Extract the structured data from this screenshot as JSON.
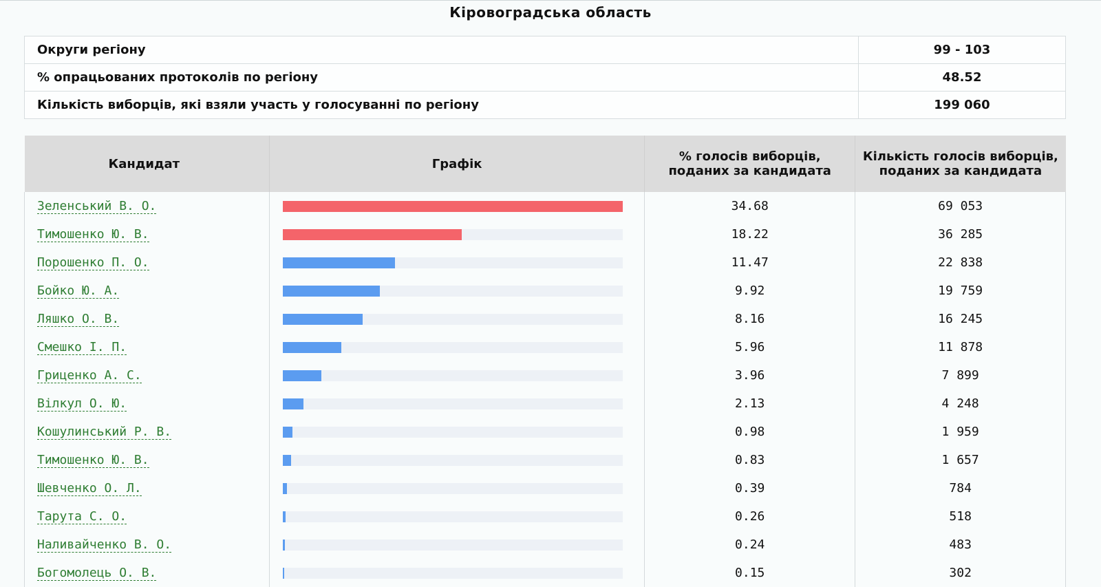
{
  "page": {
    "title": "Кіровоградська область"
  },
  "summary": {
    "rows": [
      {
        "label": "Округи регіону",
        "value": "99 - 103"
      },
      {
        "label": "% опрацьованих протоколів по регіону",
        "value": "48.52"
      },
      {
        "label": "Кількість виборців, які взяли участь у голосуванні по регіону",
        "value": "199 060"
      }
    ]
  },
  "table": {
    "headers": {
      "candidate": "Кандидат",
      "chart": "Графік",
      "percent": "% голосів виборців, поданих за кандидата",
      "votes": "Кількість голосів виборців, поданих за кандидата"
    }
  },
  "colors": {
    "top_bar": "#f4646a",
    "other_bar": "#5b9cf0",
    "track": "#edf1f6",
    "link": "#2e7d32"
  },
  "chart_data": {
    "type": "bar",
    "categories": [
      "Зеленський В. О.",
      "Тимошенко Ю. В.",
      "Порошенко П. О.",
      "Бойко Ю. А.",
      "Ляшко О. В.",
      "Смешко І. П.",
      "Гриценко А. С.",
      "Вілкул О. Ю.",
      "Кошулинський Р. В.",
      "Тимошенко Ю. В.",
      "Шевченко О. Л.",
      "Тарута С. О.",
      "Наливайченко В. О.",
      "Богомолець О. В."
    ],
    "values": [
      34.68,
      18.22,
      11.47,
      9.92,
      8.16,
      5.96,
      3.96,
      2.13,
      0.98,
      0.83,
      0.39,
      0.26,
      0.24,
      0.15
    ],
    "percent_text": [
      "34.68",
      "18.22",
      "11.47",
      "9.92",
      "8.16",
      "5.96",
      "3.96",
      "2.13",
      "0.98",
      "0.83",
      "0.39",
      "0.26",
      "0.24",
      "0.15"
    ],
    "votes_text": [
      "69 053",
      "36 285",
      "22 838",
      "19 759",
      "16 245",
      "11 878",
      "7 899",
      "4 248",
      "1 959",
      "1 657",
      "784",
      "518",
      "483",
      "302"
    ],
    "highlighted_count": 2
  }
}
